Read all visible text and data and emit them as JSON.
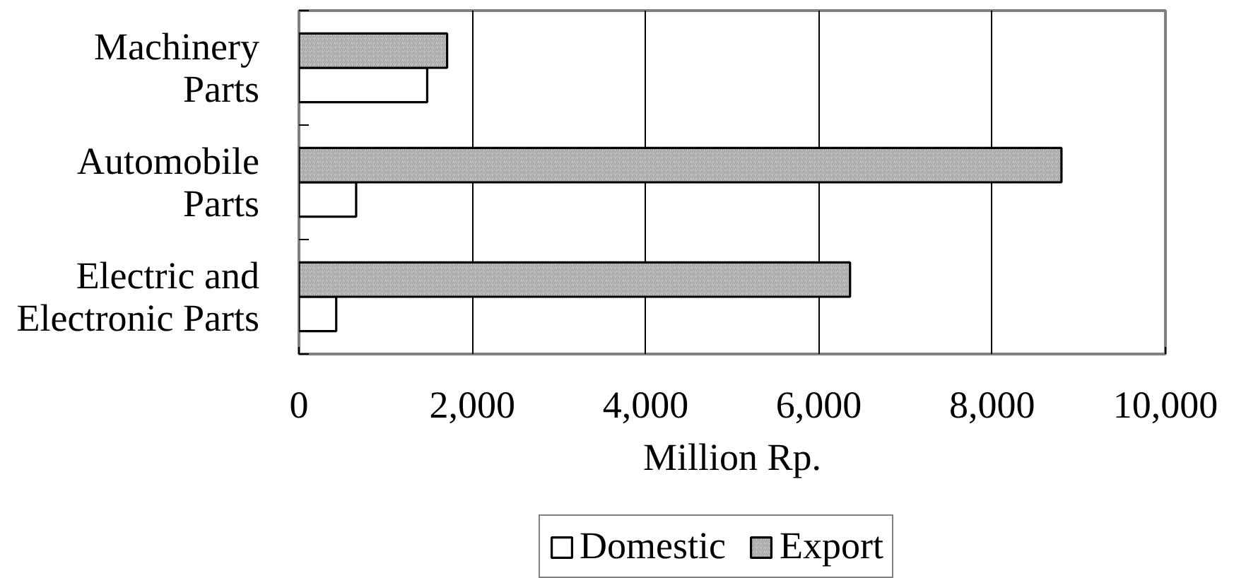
{
  "chart_data": {
    "type": "bar",
    "orientation": "horizontal",
    "categories": [
      "Machinery Parts",
      "Automobile Parts",
      "Electric and Electronic Parts"
    ],
    "series": [
      {
        "name": "Domestic",
        "color": "#ffffff",
        "values": [
          1480,
          660,
          430
        ]
      },
      {
        "name": "Export",
        "color": "#c0c0c0",
        "values": [
          1710,
          8800,
          6360
        ]
      }
    ],
    "xlabel": "Million Rp.",
    "xlim": [
      0,
      10000
    ],
    "xticks": [
      0,
      {
        "value": 2000,
        "label": "2,000"
      },
      {
        "value": 4000,
        "label": "4,000"
      },
      {
        "value": 6000,
        "label": "6,000"
      },
      {
        "value": 8000,
        "label": "8,000"
      },
      {
        "value": 10000,
        "label": "10,000"
      }
    ],
    "grid": "x",
    "legend": "bottom"
  }
}
